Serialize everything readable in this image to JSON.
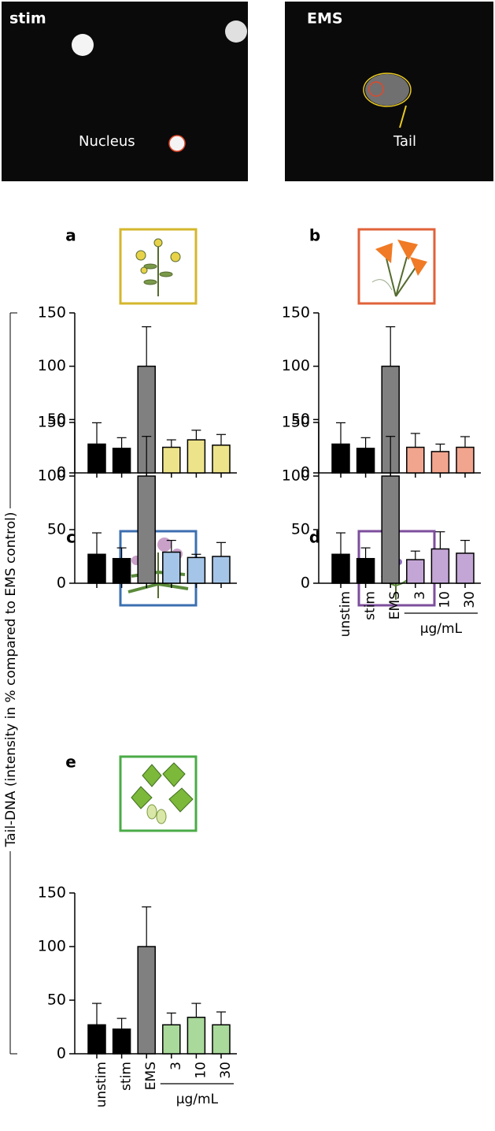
{
  "micrographs": [
    {
      "label": "stim",
      "annotation": "Nucleus"
    },
    {
      "label": "EMS",
      "annotation": "Tail"
    }
  ],
  "shared_ylabel": "Tail-DNA (intensity in % compared to EMS control)",
  "chart_data": [
    {
      "type": "bar",
      "title": "a",
      "categories": [
        null,
        null,
        null,
        null,
        null,
        null
      ],
      "values": [
        27,
        23,
        100,
        24,
        31,
        26
      ],
      "errors": [
        20,
        10,
        37,
        7,
        9,
        10
      ],
      "colors": [
        "#000000",
        "#000000",
        "#808080",
        "#ede38a",
        "#ede38a",
        "#ede38a"
      ],
      "frame_color": "#d4b72c",
      "ylim": [
        0,
        150
      ],
      "yticks": [
        0,
        50,
        100,
        150
      ]
    },
    {
      "type": "bar",
      "title": "b",
      "categories": [
        null,
        null,
        null,
        null,
        null,
        null
      ],
      "values": [
        27,
        23,
        100,
        24,
        20,
        24
      ],
      "errors": [
        20,
        10,
        37,
        13,
        7,
        10
      ],
      "colors": [
        "#000000",
        "#000000",
        "#808080",
        "#f2a58e",
        "#f2a58e",
        "#f2a58e"
      ],
      "frame_color": "#e0623a",
      "ylim": [
        0,
        150
      ],
      "yticks": [
        0,
        50,
        100,
        150
      ]
    },
    {
      "type": "bar",
      "title": "c",
      "categories": [
        null,
        null,
        null,
        null,
        null,
        null
      ],
      "values": [
        27,
        23,
        100,
        29,
        24,
        25
      ],
      "errors": [
        20,
        10,
        37,
        11,
        3,
        13
      ],
      "colors": [
        "#000000",
        "#000000",
        "#808080",
        "#a5c5e8",
        "#a5c5e8",
        "#a5c5e8"
      ],
      "frame_color": "#3c6fb0",
      "ylim": [
        0,
        150
      ],
      "yticks": [
        0,
        50,
        100,
        150
      ]
    },
    {
      "type": "bar",
      "title": "d",
      "categories": [
        "unstim",
        "stim",
        "EMS",
        "3",
        "10",
        "30"
      ],
      "group_label": "µg/mL",
      "values": [
        27,
        23,
        100,
        22,
        32,
        28
      ],
      "errors": [
        20,
        10,
        37,
        8,
        16,
        12
      ],
      "colors": [
        "#000000",
        "#000000",
        "#808080",
        "#c3a6d6",
        "#c3a6d6",
        "#c3a6d6"
      ],
      "frame_color": "#7c4e9c",
      "ylim": [
        0,
        150
      ],
      "yticks": [
        0,
        50,
        100,
        150
      ]
    },
    {
      "type": "bar",
      "title": "e",
      "categories": [
        "unstim",
        "stim",
        "EMS",
        "3",
        "10",
        "30"
      ],
      "group_label": "µg/mL",
      "values": [
        27,
        23,
        100,
        27,
        34,
        27
      ],
      "errors": [
        20,
        10,
        37,
        11,
        13,
        12
      ],
      "colors": [
        "#000000",
        "#000000",
        "#808080",
        "#a9d99b",
        "#a9d99b",
        "#a9d99b"
      ],
      "frame_color": "#4bab47",
      "ylim": [
        0,
        150
      ],
      "yticks": [
        0,
        50,
        100,
        150
      ]
    }
  ]
}
